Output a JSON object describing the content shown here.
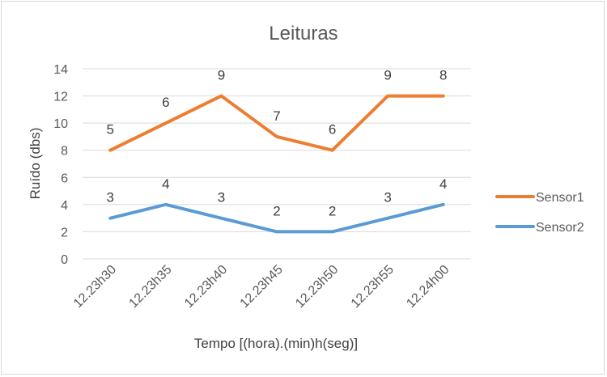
{
  "chart_data": {
    "type": "line",
    "title": "Leituras",
    "xlabel": "Tempo [(hora).(min)h(seg)]",
    "ylabel": "Ruído (dbs)",
    "categories": [
      "12.23h30",
      "12.23h35",
      "12.23h40",
      "12.23h45",
      "12.23h50",
      "12.23h55",
      "12.24h00"
    ],
    "ylim": [
      0,
      14
    ],
    "yticks": [
      0,
      2,
      4,
      6,
      8,
      10,
      12,
      14
    ],
    "grid": true,
    "legend_position": "right",
    "series": [
      {
        "name": "Sensor1",
        "color": "#ED7D31",
        "values": [
          8,
          10,
          12,
          9,
          8,
          12,
          12
        ],
        "data_labels": [
          "5",
          "6",
          "9",
          "7",
          "6",
          "9",
          "8"
        ]
      },
      {
        "name": "Sensor2",
        "color": "#5B9BD5",
        "values": [
          3,
          4,
          3,
          2,
          2,
          3,
          4
        ],
        "data_labels": [
          "3",
          "4",
          "3",
          "2",
          "2",
          "3",
          "4"
        ]
      }
    ]
  }
}
